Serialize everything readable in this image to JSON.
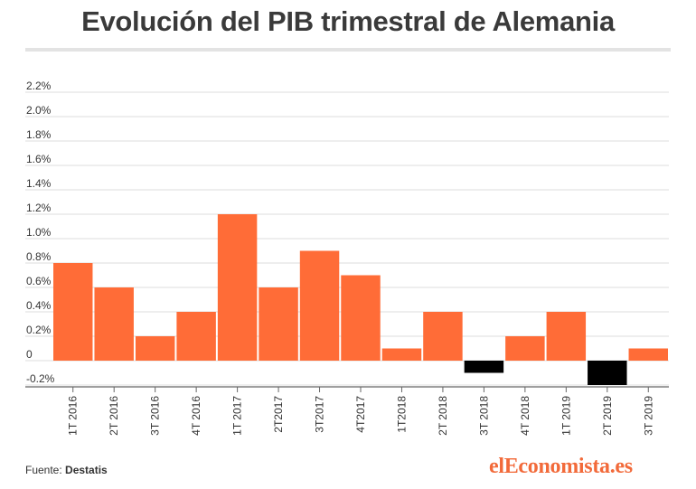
{
  "title": "Evolución del PIB trimestral de Alemania",
  "source": {
    "label": "Fuente:",
    "name": "Destatis"
  },
  "brand": "elEconomista.es",
  "colors": {
    "positive": "#ff6c37",
    "negative": "#000000",
    "grid": "#dcdcdc",
    "text": "#333333"
  },
  "chart_data": {
    "type": "bar",
    "categories": [
      "1T 2016",
      "2T 2016",
      "3T 2016",
      "4T 2016",
      "1T 2017",
      "2T2017",
      "3T2017",
      "4T2017",
      "1T2018",
      "2T 2018",
      "3T 2018",
      "4T 2018",
      "1T 2019",
      "2T 2019",
      "3T 2019"
    ],
    "values": [
      0.8,
      0.6,
      0.2,
      0.4,
      1.2,
      0.6,
      0.9,
      0.7,
      0.1,
      0.4,
      -0.1,
      0.2,
      0.4,
      -0.2,
      0.1
    ],
    "ylim": [
      -0.2,
      2.2
    ],
    "yticks": [
      2.2,
      2.0,
      1.8,
      1.6,
      1.4,
      1.2,
      1.0,
      0.8,
      0.6,
      0.4,
      0.2,
      0,
      -0.2
    ],
    "ytick_labels": [
      "2.2%",
      "2.0%",
      "1.8%",
      "1.6%",
      "1.4%",
      "1.2%",
      "1.0%",
      "0.8%",
      "0.6%",
      "0.4%",
      "0.2%",
      "0",
      "-0.2%"
    ],
    "grid": true
  }
}
